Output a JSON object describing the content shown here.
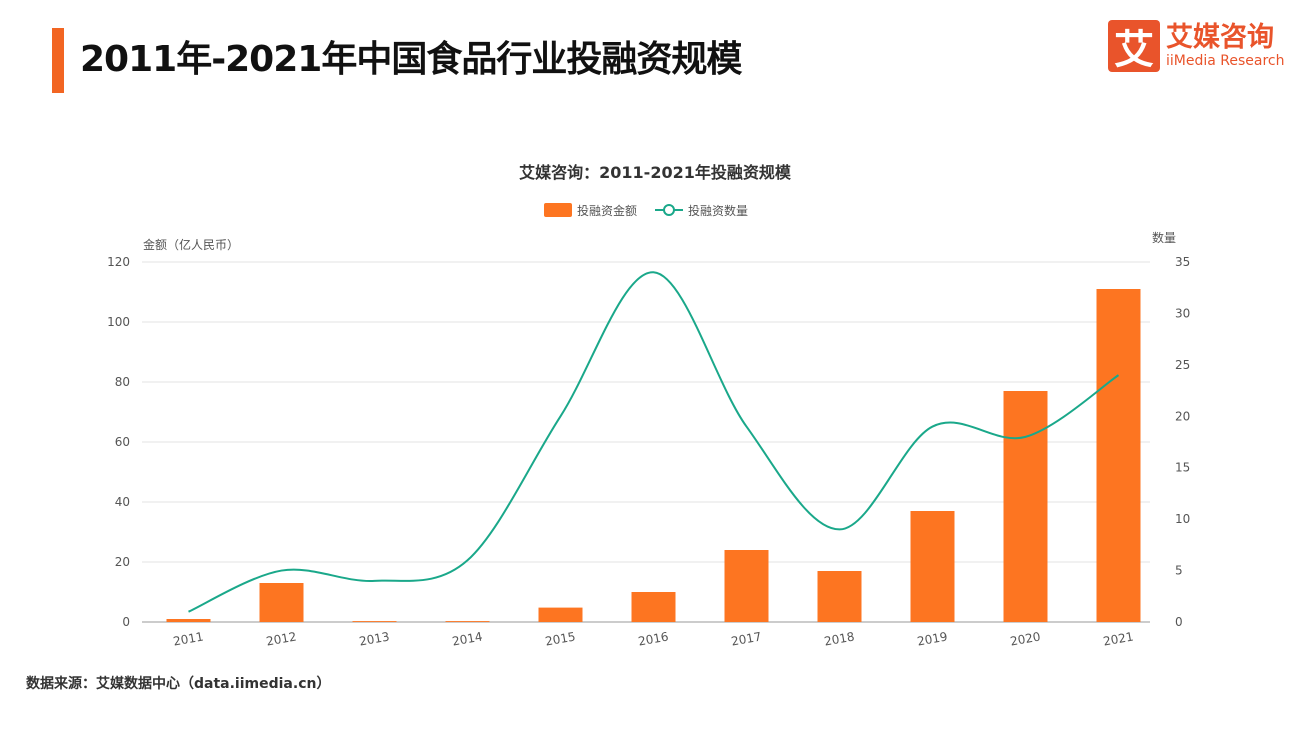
{
  "page_title": "2011年-2021年中国食品行业投融资规模",
  "logo": {
    "cn": "艾媒咨询",
    "en": "iiMedia Research",
    "mark": "艾"
  },
  "source": "数据来源：艾媒数据中心（data.iimedia.cn）",
  "chart_data": {
    "type": "bar+line",
    "title": "艾媒咨询：2011-2021年投融资规模",
    "categories": [
      "2011",
      "2012",
      "2013",
      "2014",
      "2015",
      "2016",
      "2017",
      "2018",
      "2019",
      "2020",
      "2021"
    ],
    "series": [
      {
        "name": "投融资金额",
        "type": "bar",
        "axis": "left",
        "color": "#fd7521",
        "values": [
          1,
          13,
          0.3,
          0.3,
          4.8,
          10,
          24,
          17,
          37,
          77,
          111
        ]
      },
      {
        "name": "投融资数量",
        "type": "line",
        "axis": "right",
        "color": "#1aa88a",
        "values": [
          1,
          5,
          4,
          6,
          20,
          34,
          19,
          9,
          19,
          18,
          24
        ]
      }
    ],
    "ylabel": "金额（亿人民币）",
    "ylim": [
      0,
      120
    ],
    "yticks": [
      0,
      20,
      40,
      60,
      80,
      100,
      120
    ],
    "y2label": "数量",
    "y2lim": [
      0,
      35
    ],
    "y2ticks": [
      0,
      5,
      10,
      15,
      20,
      25,
      30,
      35
    ],
    "grid": true,
    "legend": "top-center"
  }
}
